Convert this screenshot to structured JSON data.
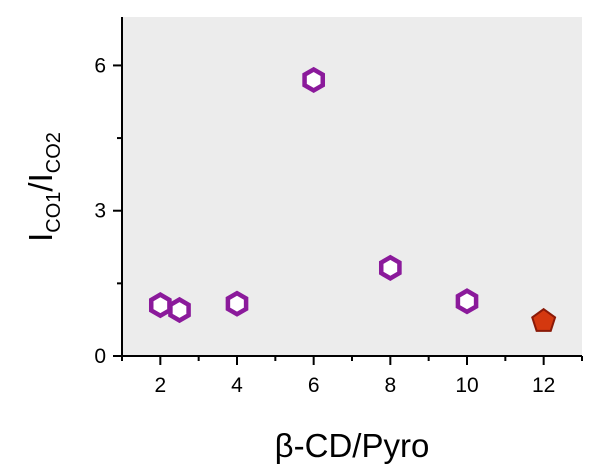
{
  "chart_data": {
    "type": "scatter",
    "xlabel": "β-CD/Pyro",
    "ylabel": {
      "main": "I",
      "sub1": "CO1",
      "sep": "/I",
      "sub2": "CO2"
    },
    "xlim": [
      1,
      13
    ],
    "ylim": [
      0,
      7
    ],
    "xticks": [
      2,
      4,
      6,
      8,
      10,
      12
    ],
    "yticks": [
      0,
      3,
      6
    ],
    "grid": false,
    "plot_background": "#ececec",
    "series": [
      {
        "marker": "hexagon-open",
        "color": "#8b1a9b",
        "points": [
          {
            "x": 2.0,
            "y": 1.05
          },
          {
            "x": 2.5,
            "y": 0.95
          },
          {
            "x": 4.0,
            "y": 1.08
          },
          {
            "x": 6.0,
            "y": 5.7
          },
          {
            "x": 8.0,
            "y": 1.82
          },
          {
            "x": 10.0,
            "y": 1.13
          }
        ]
      },
      {
        "marker": "pentagon-filled",
        "color": "#d4380f",
        "edge_color": "#8a1a08",
        "points": [
          {
            "x": 12.0,
            "y": 0.72
          }
        ]
      }
    ]
  }
}
